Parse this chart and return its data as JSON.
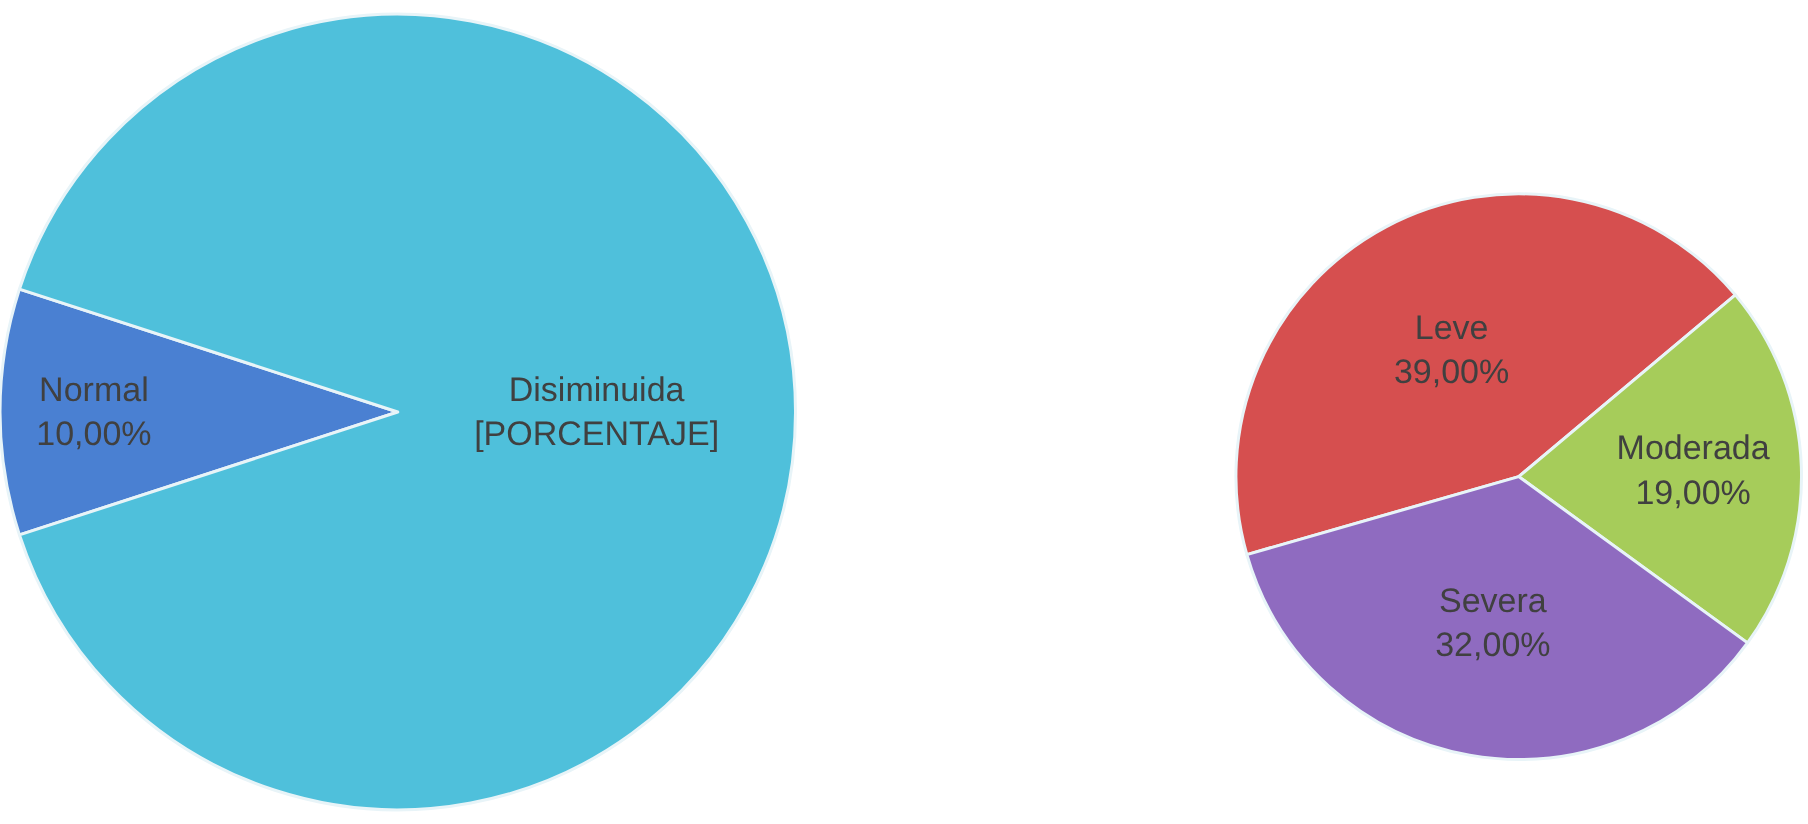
{
  "chart_data": [
    {
      "type": "pie",
      "categories": [
        "Normal",
        "Disiminuida"
      ],
      "values": [
        10,
        90
      ],
      "colors": [
        "#4a80d2",
        "#4fc0db"
      ],
      "value_labels": [
        "10,00%",
        "[PORCENTAJE]"
      ],
      "legend": false
    },
    {
      "type": "pie",
      "categories": [
        "Leve",
        "Moderada",
        "Severa"
      ],
      "values": [
        39,
        19,
        32
      ],
      "colors": [
        "#d64f4f",
        "#a6cc5a",
        "#8f6bc0"
      ],
      "value_labels": [
        "39,00%",
        "19,00%",
        "32,00%"
      ],
      "legend": false
    }
  ]
}
